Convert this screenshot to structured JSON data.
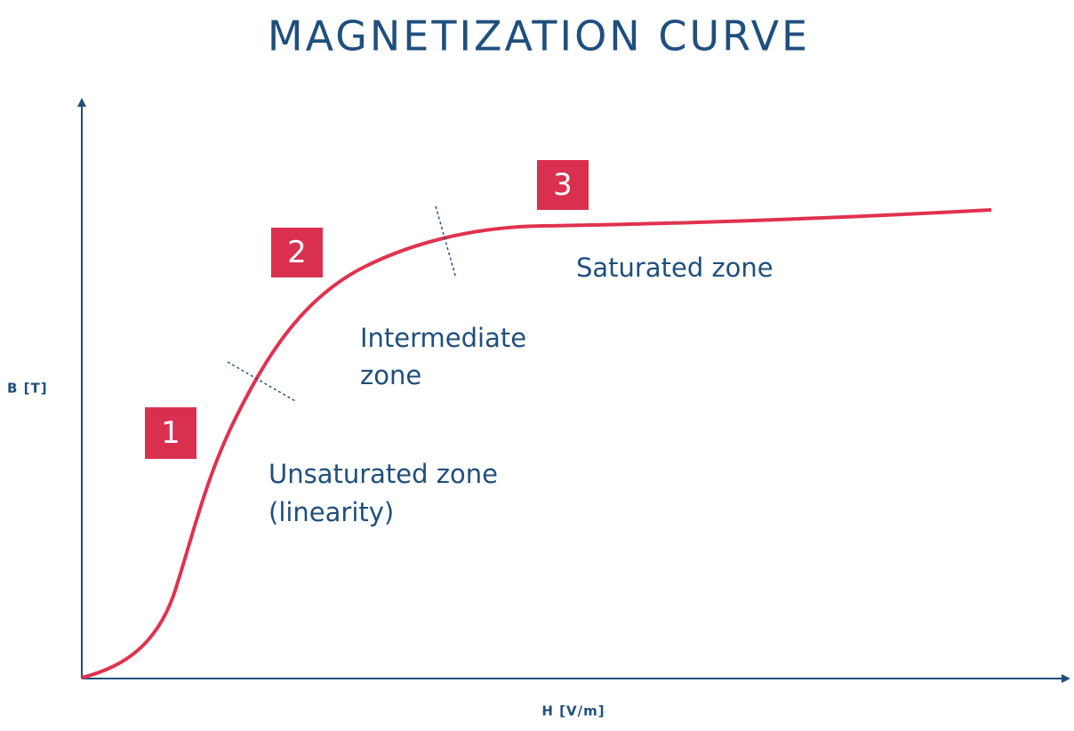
{
  "title": "MAGNETIZATION CURVE",
  "axes": {
    "y_label": "B [T]",
    "x_label": "H [V/m]"
  },
  "zones": [
    {
      "number": "1",
      "label_lines": [
        "Unsaturated zone",
        "(linearity)"
      ]
    },
    {
      "number": "2",
      "label_lines": [
        "Intermediate",
        "zone"
      ]
    },
    {
      "number": "3",
      "label_lines": [
        "Saturated zone"
      ]
    }
  ]
}
